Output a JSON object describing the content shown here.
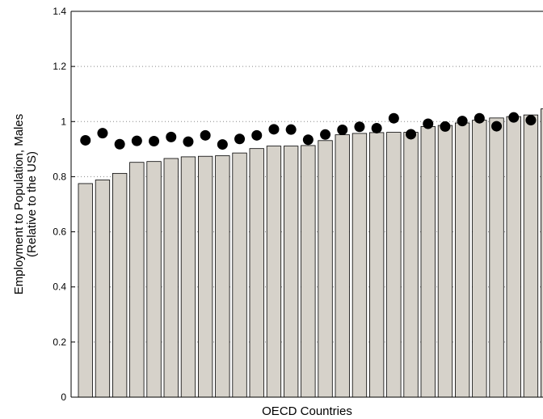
{
  "chart_data": {
    "type": "bar",
    "title": "",
    "xlabel": "OECD Countries",
    "ylabel": [
      "Employment to Population, Males",
      "(Relative to the US)"
    ],
    "ylim": [
      0,
      1.4
    ],
    "yticks": [
      0,
      0.2,
      0.4,
      0.6,
      0.8,
      1,
      1.2,
      1.4
    ],
    "ytick_labels": [
      "0",
      "0.2",
      "0.4",
      "0.6",
      "0.8",
      "1",
      "1.2",
      "1.4"
    ],
    "grid": "horizontal dotted",
    "series": [
      {
        "kind": "bar",
        "values": [
          0.775,
          0.788,
          0.812,
          0.852,
          0.855,
          0.866,
          0.872,
          0.874,
          0.876,
          0.886,
          0.902,
          0.911,
          0.911,
          0.913,
          0.931,
          0.952,
          0.957,
          0.96,
          0.961,
          0.961,
          0.982,
          0.986,
          0.995,
          1.005,
          1.013,
          1.018,
          1.024,
          1.046
        ]
      },
      {
        "kind": "scatter",
        "values": [
          0.932,
          0.958,
          0.918,
          0.93,
          0.929,
          0.944,
          0.927,
          0.95,
          0.917,
          0.937,
          0.95,
          0.972,
          0.971,
          0.934,
          0.953,
          0.97,
          0.981,
          0.976,
          1.012,
          0.954,
          0.992,
          0.982,
          1.002,
          1.012,
          0.983,
          1.015,
          1.005
        ]
      }
    ],
    "colors": {
      "bar_fill": "#d6d2ca",
      "bar_stroke": "#000000",
      "marker": "#000000",
      "grid": "#888888"
    }
  }
}
